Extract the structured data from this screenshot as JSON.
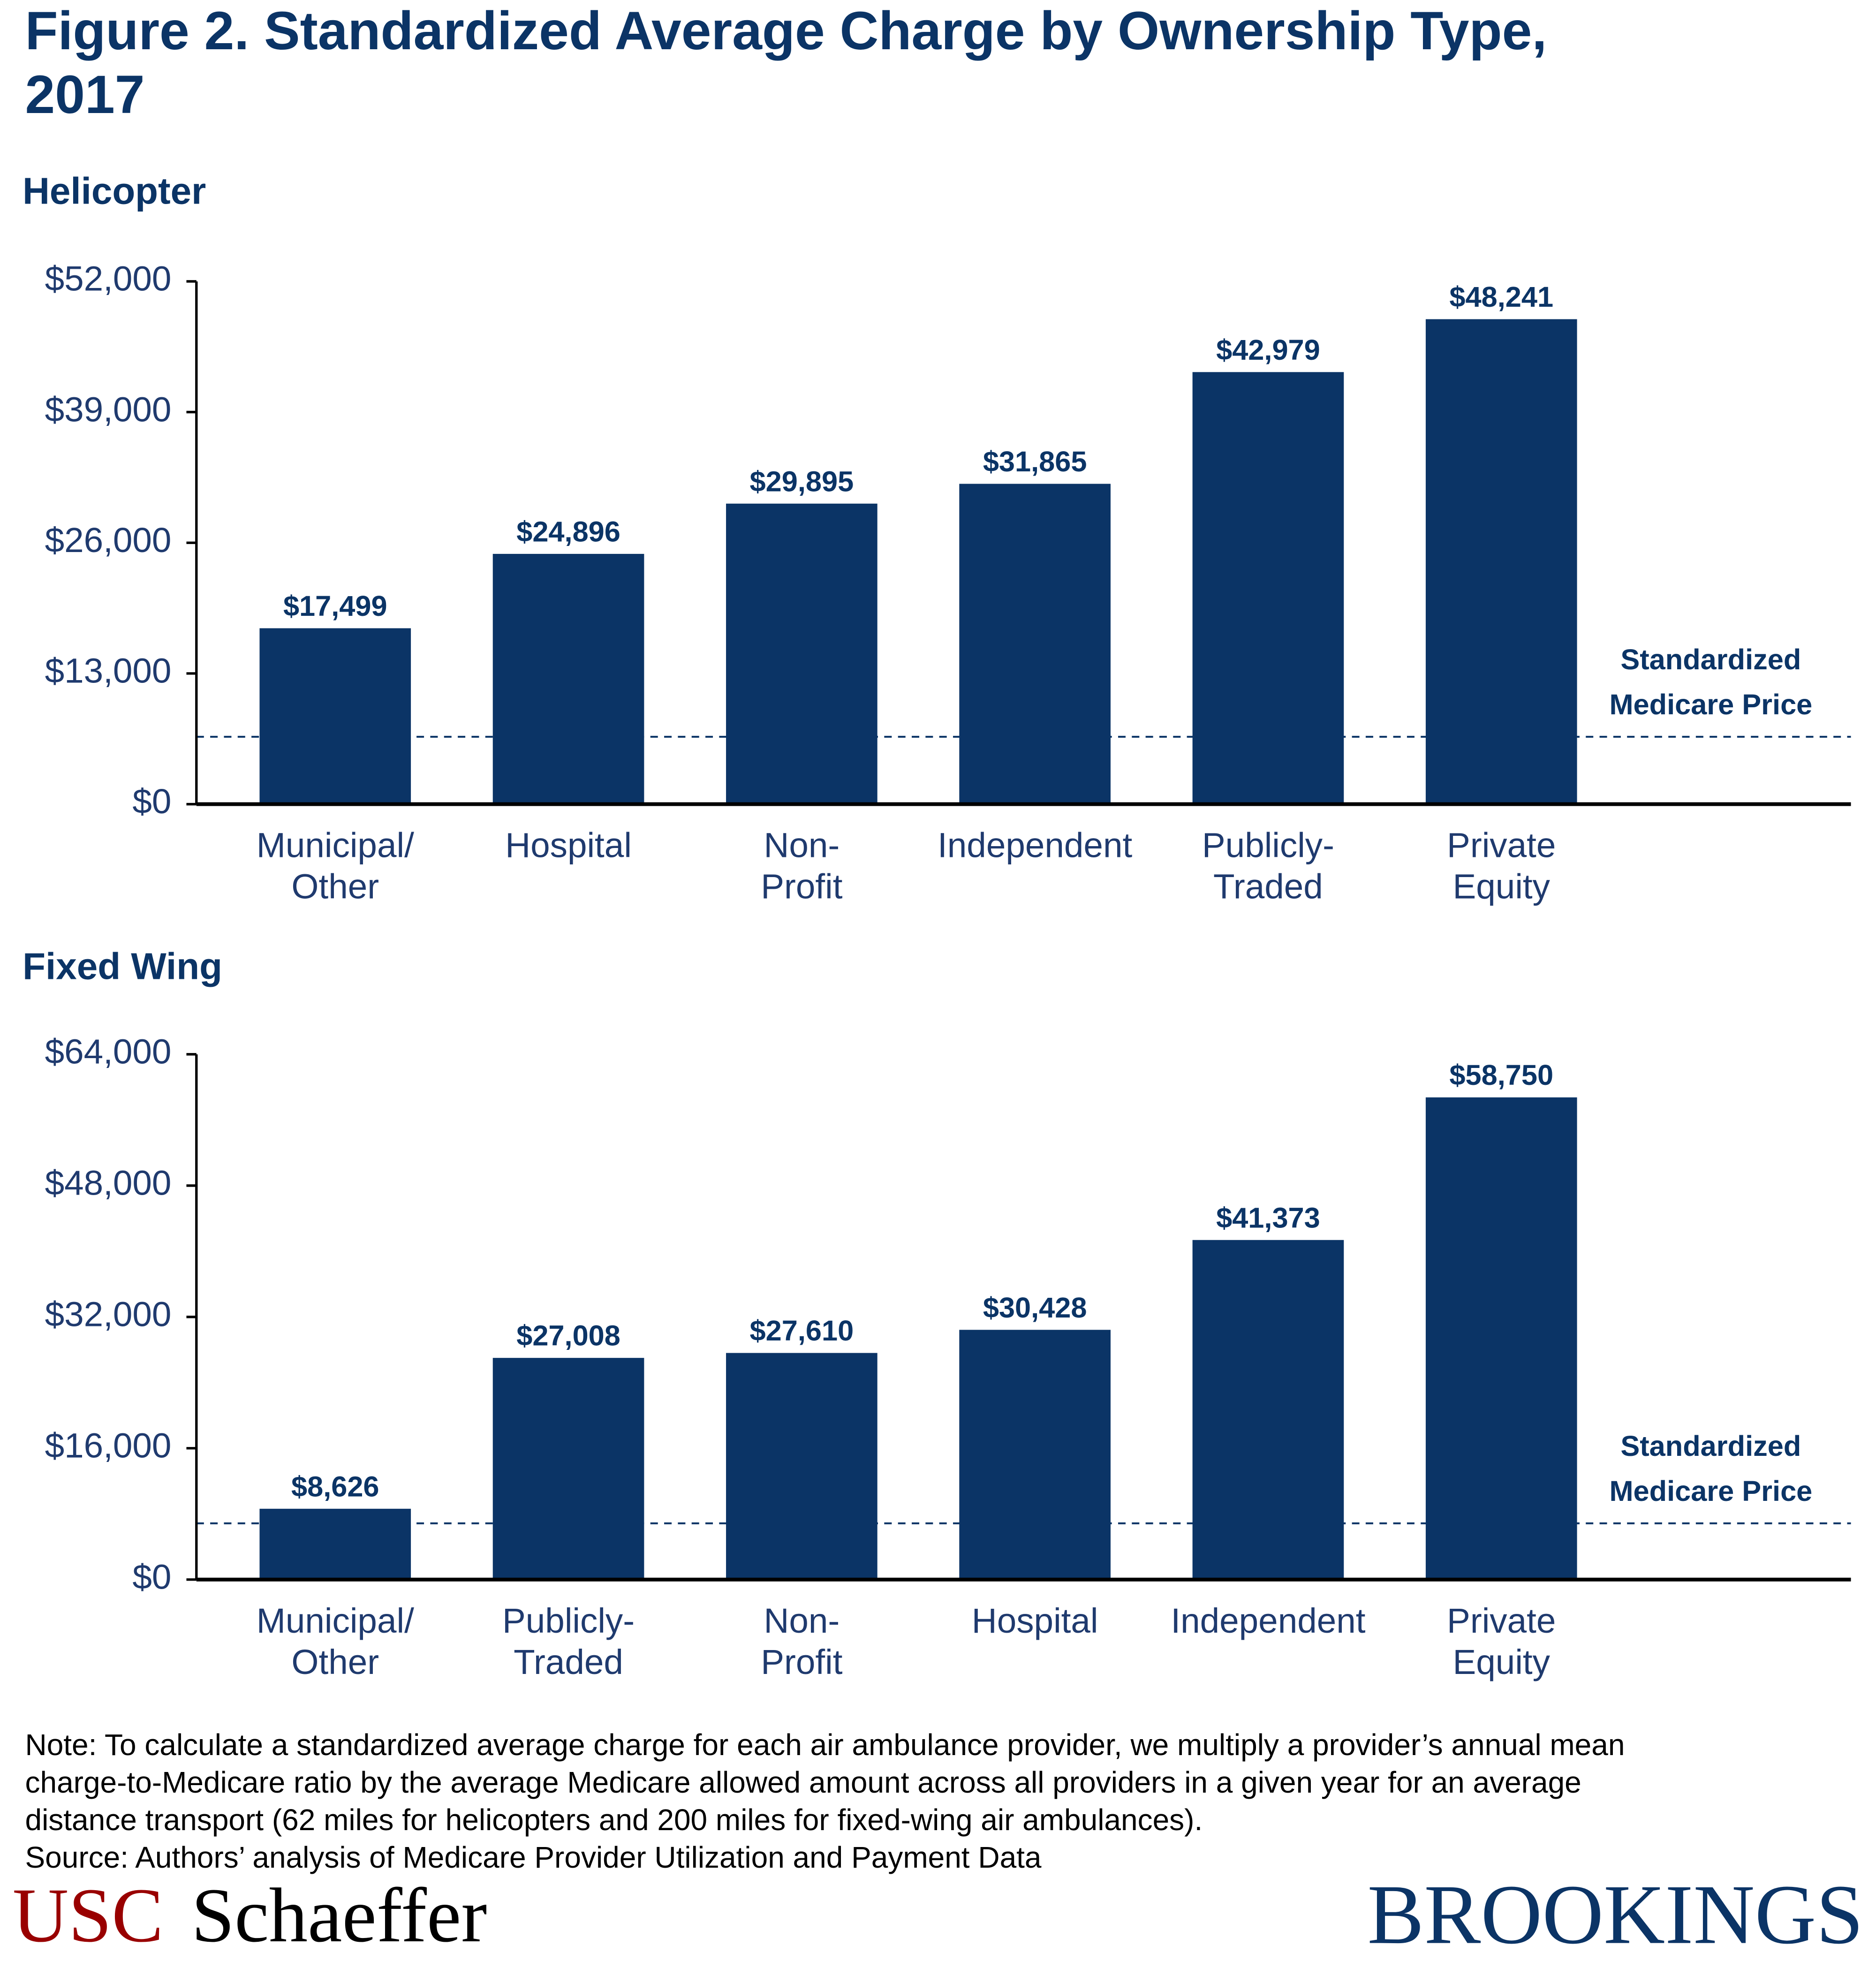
{
  "title": [
    "Figure 2. Standardized Average Charge by Ownership Type,",
    "2017"
  ],
  "chart_data": [
    {
      "type": "bar",
      "title": "Helicopter",
      "categories": [
        [
          "Municipal/",
          "Other"
        ],
        [
          "Hospital"
        ],
        [
          "Non-",
          "Profit"
        ],
        [
          "Independent"
        ],
        [
          "Publicly-",
          "Traded"
        ],
        [
          "Private",
          "Equity"
        ]
      ],
      "values": [
        17499,
        24896,
        29895,
        31865,
        42979,
        48241
      ],
      "value_labels": [
        "$17,499",
        "$24,896",
        "$29,895",
        "$31,865",
        "$42,979",
        "$48,241"
      ],
      "color": "#0b3466",
      "ylim": [
        0,
        52000
      ],
      "yticks": [
        {
          "value": 0,
          "label": "$0"
        },
        {
          "value": 13000,
          "label": "$13,000"
        },
        {
          "value": 26000,
          "label": "$26,000"
        },
        {
          "value": 39000,
          "label": "$39,000"
        },
        {
          "value": 52000,
          "label": "$52,000"
        }
      ],
      "reference_line": {
        "label": [
          "Standardized",
          "Medicare Price"
        ],
        "value": 6700
      }
    },
    {
      "type": "bar",
      "title": "Fixed Wing",
      "categories": [
        [
          "Municipal/",
          "Other"
        ],
        [
          "Publicly-",
          "Traded"
        ],
        [
          "Non-",
          "Profit"
        ],
        [
          "Hospital"
        ],
        [
          "Independent"
        ],
        [
          "Private",
          "Equity"
        ]
      ],
      "values": [
        8626,
        27008,
        27610,
        30428,
        41373,
        58750
      ],
      "value_labels": [
        "$8,626",
        "$27,008",
        "$27,610",
        "$30,428",
        "$41,373",
        "$58,750"
      ],
      "color": "#0b3466",
      "ylim": [
        0,
        64000
      ],
      "yticks": [
        {
          "value": 0,
          "label": "$0"
        },
        {
          "value": 16000,
          "label": "$16,000"
        },
        {
          "value": 32000,
          "label": "$32,000"
        },
        {
          "value": 48000,
          "label": "$48,000"
        },
        {
          "value": 64000,
          "label": "$64,000"
        }
      ],
      "reference_line": {
        "label": [
          "Standardized",
          "Medicare Price"
        ],
        "value": 6850
      }
    }
  ],
  "note": [
    "Note: To calculate a standardized average charge for each air ambulance provider, we multiply a provider’s annual mean",
    "charge-to-Medicare ratio by the average Medicare allowed amount across all providers in a given year for an average",
    "distance transport (62 miles for helicopters and 200 miles for fixed-wing air ambulances)."
  ],
  "source": "Source: Authors’ analysis of Medicare Provider Utilization and Payment Data",
  "logos": {
    "usc": "USC",
    "schaeffer": "Schaeffer",
    "brookings": "BROOKINGS"
  }
}
